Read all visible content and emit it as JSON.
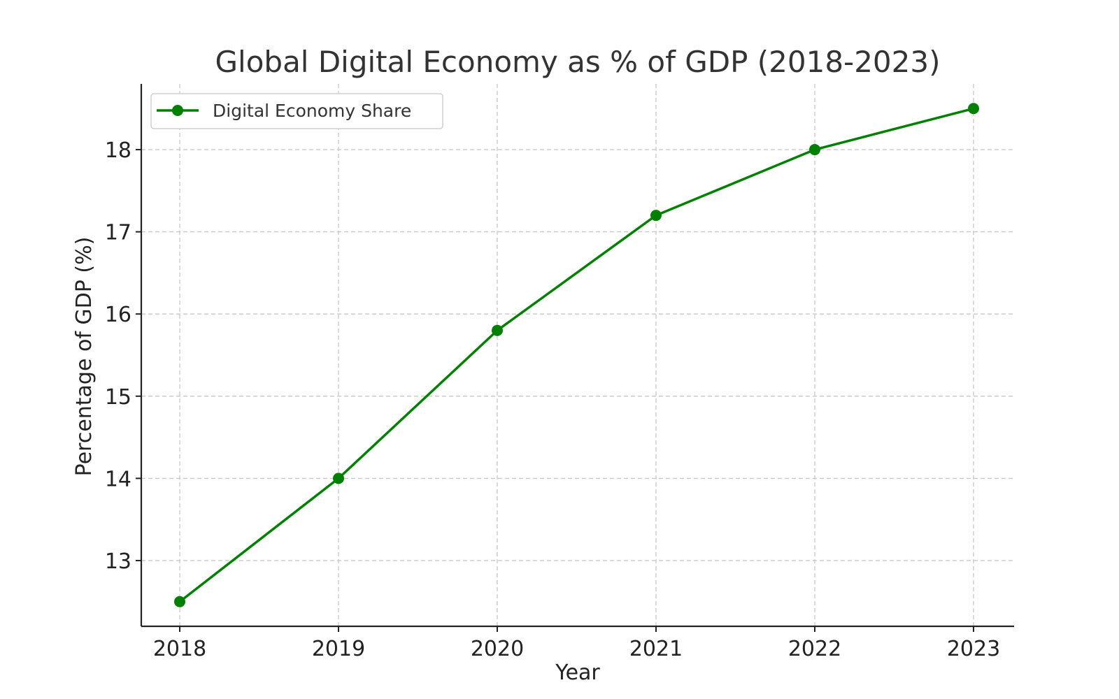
{
  "chart_data": {
    "type": "line",
    "title": "Global Digital Economy as % of GDP (2018-2023)",
    "xlabel": "Year",
    "ylabel": "Percentage of GDP (%)",
    "categories": [
      "2018",
      "2019",
      "2020",
      "2021",
      "2022",
      "2023"
    ],
    "series": [
      {
        "name": "Digital Economy Share",
        "values": [
          12.5,
          14.0,
          15.8,
          17.2,
          18.0,
          18.5
        ],
        "color": "#008000",
        "marker": "circle"
      }
    ],
    "yticks": [
      13,
      14,
      15,
      16,
      17,
      18
    ],
    "ylim": [
      12.2,
      18.8
    ],
    "grid": true,
    "legend_position": "upper-left"
  }
}
